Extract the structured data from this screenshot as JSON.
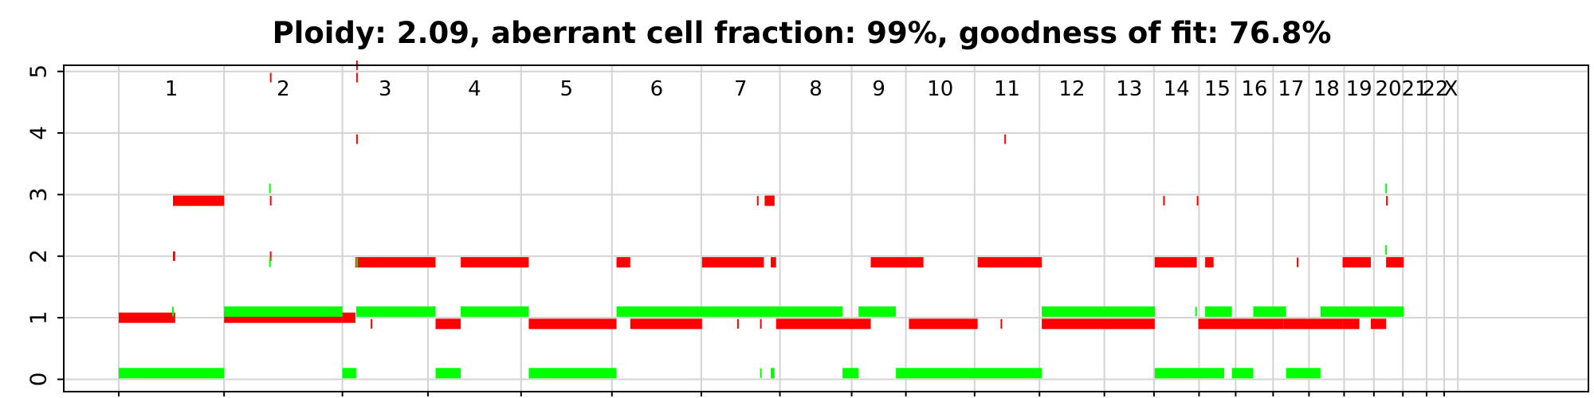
{
  "chart_data": {
    "type": "segment",
    "title": "Ploidy: 2.09, aberrant cell fraction: 99%, goodness of fit: 76.8%",
    "xlabel": "",
    "ylabel": "",
    "ylim": [
      -0.2,
      5.1
    ],
    "yticks": [
      "0",
      "1",
      "2",
      "3",
      "4",
      "5"
    ],
    "grid": true,
    "xlim": [
      -7.2,
      192.5
    ],
    "chromosomes": [
      {
        "label": "1",
        "start": 0,
        "end": 13.8
      },
      {
        "label": "2",
        "start": 13.8,
        "end": 29.3
      },
      {
        "label": "3",
        "start": 29.3,
        "end": 40.5
      },
      {
        "label": "4",
        "start": 40.5,
        "end": 52.7
      },
      {
        "label": "5",
        "start": 52.7,
        "end": 64.6
      },
      {
        "label": "6",
        "start": 64.6,
        "end": 76.3
      },
      {
        "label": "7",
        "start": 76.3,
        "end": 86.6
      },
      {
        "label": "8",
        "start": 86.6,
        "end": 96.0
      },
      {
        "label": "9",
        "start": 96.0,
        "end": 103.1
      },
      {
        "label": "10",
        "start": 103.1,
        "end": 112.1
      },
      {
        "label": "11",
        "start": 112.1,
        "end": 120.6
      },
      {
        "label": "12",
        "start": 120.6,
        "end": 129.1
      },
      {
        "label": "13",
        "start": 129.1,
        "end": 135.6
      },
      {
        "label": "14",
        "start": 135.6,
        "end": 141.5
      },
      {
        "label": "15",
        "start": 141.5,
        "end": 146.3
      },
      {
        "label": "16",
        "start": 146.3,
        "end": 151.2
      },
      {
        "label": "17",
        "start": 151.2,
        "end": 155.9
      },
      {
        "label": "18",
        "start": 155.9,
        "end": 160.5
      },
      {
        "label": "19",
        "start": 160.5,
        "end": 164.4
      },
      {
        "label": "20",
        "start": 164.4,
        "end": 168.2
      },
      {
        "label": "21",
        "start": 168.2,
        "end": 171.3
      },
      {
        "label": "22",
        "start": 171.3,
        "end": 173.6
      },
      {
        "label": "X",
        "start": 173.6,
        "end": 175.4
      }
    ],
    "series": [
      {
        "color": "#ff0000",
        "segments": [
          [
            0.0,
            7.4,
            1
          ],
          [
            7.1,
            13.8,
            2.9
          ],
          [
            7.1,
            7.4,
            2
          ],
          [
            13.8,
            29.3,
            1
          ],
          [
            19.8,
            20.0,
            2.9
          ],
          [
            19.8,
            20.0,
            2
          ],
          [
            19.8,
            20.0,
            4.9
          ],
          [
            29.3,
            31.0,
            1
          ],
          [
            31.0,
            41.5,
            1.9
          ],
          [
            31.1,
            31.3,
            3.9
          ],
          [
            31.1,
            31.3,
            4.9
          ],
          [
            31.1,
            31.3,
            5.1
          ],
          [
            33.0,
            33.2,
            0.9
          ],
          [
            41.5,
            44.8,
            0.9
          ],
          [
            44.8,
            53.7,
            1.9
          ],
          [
            53.7,
            65.2,
            0.9
          ],
          [
            65.2,
            67.0,
            1.9
          ],
          [
            67.0,
            76.4,
            0.9
          ],
          [
            76.4,
            84.5,
            1.9
          ],
          [
            81.0,
            81.2,
            0.9
          ],
          [
            84.0,
            84.2,
            0.9
          ],
          [
            83.6,
            83.8,
            2.9
          ],
          [
            84.6,
            85.9,
            2.9
          ],
          [
            85.4,
            86.1,
            1.9
          ],
          [
            86.1,
            98.5,
            0.9
          ],
          [
            98.5,
            103.5,
            1.9
          ],
          [
            103.5,
            105.4,
            1.9
          ],
          [
            103.5,
            104.5,
            0.9
          ],
          [
            104.5,
            112.5,
            0.9
          ],
          [
            112.5,
            120.9,
            1.9
          ],
          [
            115.5,
            115.7,
            0.9
          ],
          [
            116.0,
            116.2,
            3.9
          ],
          [
            120.9,
            135.7,
            0.9
          ],
          [
            135.7,
            141.2,
            1.9
          ],
          [
            136.8,
            137.0,
            2.9
          ],
          [
            141.2,
            141.4,
            2.9
          ],
          [
            141.4,
            152.6,
            0.9
          ],
          [
            142.3,
            143.4,
            1.9
          ],
          [
            152.6,
            160.3,
            0.9
          ],
          [
            154.3,
            154.5,
            1.9
          ],
          [
            160.3,
            164.0,
            1.9
          ],
          [
            160.3,
            162.5,
            0.9
          ],
          [
            164.0,
            166.0,
            0.9
          ],
          [
            166.0,
            166.2,
            2.9
          ],
          [
            166.0,
            168.3,
            1.9
          ]
        ]
      },
      {
        "color": "#00ff00",
        "segments": [
          [
            0.0,
            13.8,
            0.1
          ],
          [
            7.0,
            7.2,
            1.1
          ],
          [
            13.8,
            29.3,
            1.1
          ],
          [
            19.7,
            19.9,
            1.9
          ],
          [
            19.7,
            19.9,
            3.1
          ],
          [
            29.3,
            31.1,
            0.1
          ],
          [
            31.1,
            41.5,
            1.1
          ],
          [
            31.1,
            31.3,
            1.9
          ],
          [
            41.5,
            44.8,
            0.1
          ],
          [
            44.8,
            53.7,
            1.1
          ],
          [
            53.7,
            65.2,
            0.1
          ],
          [
            65.2,
            86.1,
            1.1
          ],
          [
            84.0,
            84.2,
            0.1
          ],
          [
            85.4,
            85.9,
            0.1
          ],
          [
            86.1,
            94.8,
            1.1
          ],
          [
            94.8,
            96.9,
            0.1
          ],
          [
            96.9,
            101.8,
            1.1
          ],
          [
            101.8,
            120.9,
            0.1
          ],
          [
            120.9,
            135.7,
            1.1
          ],
          [
            135.7,
            144.8,
            0.1
          ],
          [
            141.0,
            141.2,
            1.1
          ],
          [
            142.3,
            145.8,
            1.1
          ],
          [
            145.8,
            148.6,
            0.1
          ],
          [
            148.6,
            152.9,
            1.1
          ],
          [
            152.9,
            157.4,
            0.1
          ],
          [
            157.4,
            168.3,
            1.1
          ],
          [
            165.9,
            166.1,
            2.1
          ],
          [
            165.9,
            166.1,
            3.1
          ]
        ]
      }
    ]
  }
}
